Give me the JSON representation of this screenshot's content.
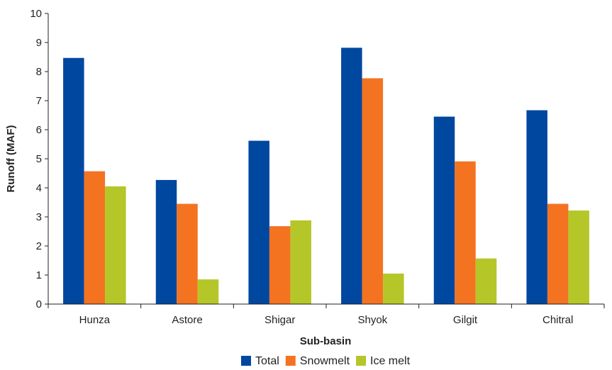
{
  "chart_data": {
    "type": "bar",
    "title": "",
    "xlabel": "Sub-basin",
    "ylabel": "Runoff (MAF)",
    "categories": [
      "Hunza",
      "Astore",
      "Shigar",
      "Shyok",
      "Gilgit",
      "Chitral"
    ],
    "ylim": [
      0,
      10
    ],
    "yticks": [
      "0",
      "1",
      "2",
      "3",
      "4",
      "5",
      "6",
      "7",
      "8",
      "9",
      "10"
    ],
    "grid": false,
    "legend_position": "bottom",
    "series": [
      {
        "name": "Total",
        "color": "#0047a0",
        "values": [
          8.47,
          4.27,
          5.62,
          8.82,
          6.45,
          6.67
        ]
      },
      {
        "name": "Snowmelt",
        "color": "#f47321",
        "values": [
          4.57,
          3.45,
          2.68,
          7.77,
          4.91,
          3.45
        ]
      },
      {
        "name": "Ice melt",
        "color": "#b5c629",
        "values": [
          4.05,
          0.85,
          2.88,
          1.05,
          1.57,
          3.22
        ]
      }
    ]
  }
}
